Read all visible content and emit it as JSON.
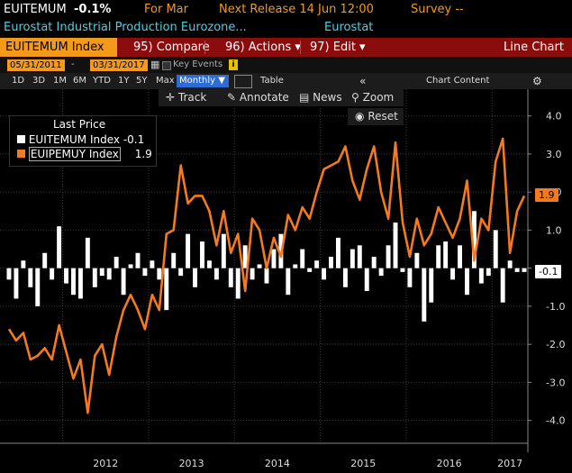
{
  "header": {
    "ticker": "EUITEMUM",
    "last_value": "-0.1%",
    "period": "For Mar",
    "next_release": "Next Release 14 Jun 12:00",
    "survey": "Survey --",
    "description": "Eurostat Industrial Production Eurozone...",
    "source": "Eurostat"
  },
  "toolbar": {
    "security": "EUITEMUM Index",
    "compare": "95) Compare",
    "actions": "96) Actions ▾",
    "edit": "97) Edit ▾",
    "chart_type": "Line Chart"
  },
  "daterow": {
    "start_date": "05/31/2011",
    "end_date": "03/31/2017",
    "key_events": "Key Events"
  },
  "rangerow": {
    "ranges": [
      "1D",
      "3D",
      "1M",
      "6M",
      "YTD",
      "1Y",
      "5Y",
      "Max"
    ],
    "frequency": "Monthly ▼",
    "table": "Table",
    "chart_content": "Chart Content"
  },
  "subrow": {
    "track": "Track",
    "annotate": "Annotate",
    "news": "News",
    "zoom": "Zoom",
    "reset": "Reset"
  },
  "colors": {
    "background": "#000000",
    "toolbar": "#8b0c0c",
    "accent": "#f39a1b",
    "mom_series": "#ffffff",
    "yoy_series": "#f37a1e",
    "header_cyan": "#4fd0e0"
  },
  "chart_data": {
    "type": "bar+line",
    "legend_title": "Last Price",
    "legend_placement": "top-left",
    "x_labels": [
      "2012",
      "2013",
      "2014",
      "2015",
      "2016",
      "2017"
    ],
    "ylim": [
      -4.6,
      4.3
    ],
    "y_ticks": [
      4.0,
      3.0,
      2.0,
      1.0,
      0.0,
      -1.0,
      -2.0,
      -3.0,
      -4.0
    ],
    "y_tick_labels": [
      "4.0",
      "3.0",
      "2.0",
      "1.0",
      "-",
      "-1.0",
      "-2.0",
      "-3.0",
      "-4.0"
    ],
    "grid": true,
    "start": "2011-05",
    "series": [
      {
        "name": "EUITEMUM Index",
        "legend_value": "-0.1",
        "last_tag": "-0.1",
        "type": "bar",
        "values": [
          -0.3,
          -0.8,
          0.2,
          -0.5,
          -1.0,
          0.4,
          -0.3,
          1.1,
          -0.4,
          -0.7,
          -0.8,
          0.8,
          -0.5,
          -0.2,
          -0.3,
          0.3,
          -0.7,
          0.1,
          0.4,
          -0.2,
          0.2,
          -0.3,
          -1.1,
          0.4,
          -0.2,
          0.9,
          -0.5,
          0.7,
          0.2,
          -0.3,
          0.9,
          -0.5,
          -0.8,
          0.6,
          -0.3,
          0.1,
          -0.4,
          0.5,
          0.9,
          -0.7,
          0.1,
          0.5,
          -0.1,
          0.2,
          -0.3,
          0.3,
          0.8,
          -0.5,
          0.5,
          0.6,
          -0.6,
          0.3,
          -0.2,
          0.6,
          1.2,
          -0.1,
          -0.5,
          0.4,
          -1.4,
          -0.9,
          0.6,
          0.7,
          -0.3,
          0.6,
          -0.7,
          1.5,
          -0.4,
          -0.2,
          1.0,
          -0.9,
          0.2,
          -0.1,
          -0.1
        ]
      },
      {
        "name": "EUIPEMUY Index",
        "legend_value": "1.9",
        "last_tag": "1.9",
        "type": "line",
        "values": [
          -1.6,
          -1.9,
          -1.7,
          -2.4,
          -2.3,
          -2.1,
          -2.4,
          -1.5,
          -2.2,
          -2.9,
          -2.4,
          -3.8,
          -2.3,
          -2.0,
          -2.8,
          -1.8,
          -1.1,
          -0.7,
          -1.1,
          -1.6,
          -0.7,
          -1.1,
          0.9,
          1.0,
          2.7,
          1.7,
          1.9,
          1.9,
          1.5,
          0.6,
          1.5,
          0.4,
          0.9,
          -0.6,
          1.3,
          1.0,
          0.0,
          0.8,
          0.3,
          1.4,
          1.0,
          1.6,
          1.3,
          2.0,
          2.6,
          2.7,
          2.8,
          3.2,
          2.3,
          1.8,
          2.6,
          3.2,
          2.0,
          1.3,
          3.3,
          1.2,
          0.3,
          1.3,
          0.6,
          0.9,
          1.6,
          1.2,
          0.8,
          1.3,
          2.3,
          0.2,
          1.3,
          1.0,
          2.8,
          3.4,
          0.4,
          1.5,
          1.9
        ]
      }
    ]
  }
}
